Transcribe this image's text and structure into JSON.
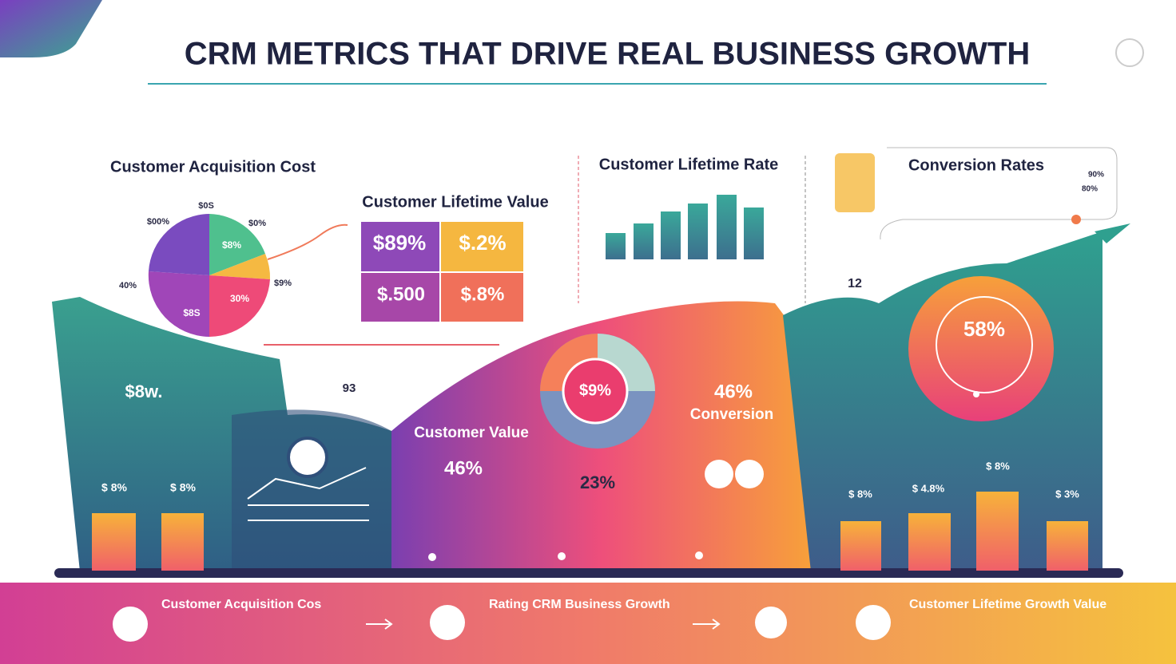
{
  "header": {
    "title": "CRM METRICS THAT DRIVE REAL BUSINESS GROWTH"
  },
  "acquisition_cost": {
    "title": "Customer Acquisition Cost",
    "pie_labels": [
      "$0S",
      "$00%",
      "$0%",
      "40%",
      "$9%",
      "$8%",
      "30%",
      "$8S"
    ]
  },
  "lifetime_value": {
    "title": "Customer Lifetime Value",
    "tiles": [
      "$89%",
      "$.2%",
      "$.500",
      "$.8%"
    ]
  },
  "lifetime_rate": {
    "title": "Customer Lifetime Rate"
  },
  "conversion_rates": {
    "title": "Conversion Rates",
    "labels": [
      "90%",
      "80%"
    ]
  },
  "left_panel": {
    "headline": "$8w.",
    "bars": [
      "$ 8%",
      "$ 8%"
    ],
    "mid": "93"
  },
  "customer_value": {
    "title": "Customer Value",
    "value": "46%",
    "donut": "$9%",
    "second": "23%"
  },
  "conversion": {
    "value": "46%",
    "label": "Conversion"
  },
  "circle": {
    "value": "58%",
    "side": "12"
  },
  "right_bars": [
    "$ 8%",
    "$ 4.8%",
    "$ 8%",
    "$ 3%"
  ],
  "footer": [
    "Customer Acquisition Cos",
    "Rating CRM Business Growth",
    "Customer Lifetime Growth Value"
  ]
}
